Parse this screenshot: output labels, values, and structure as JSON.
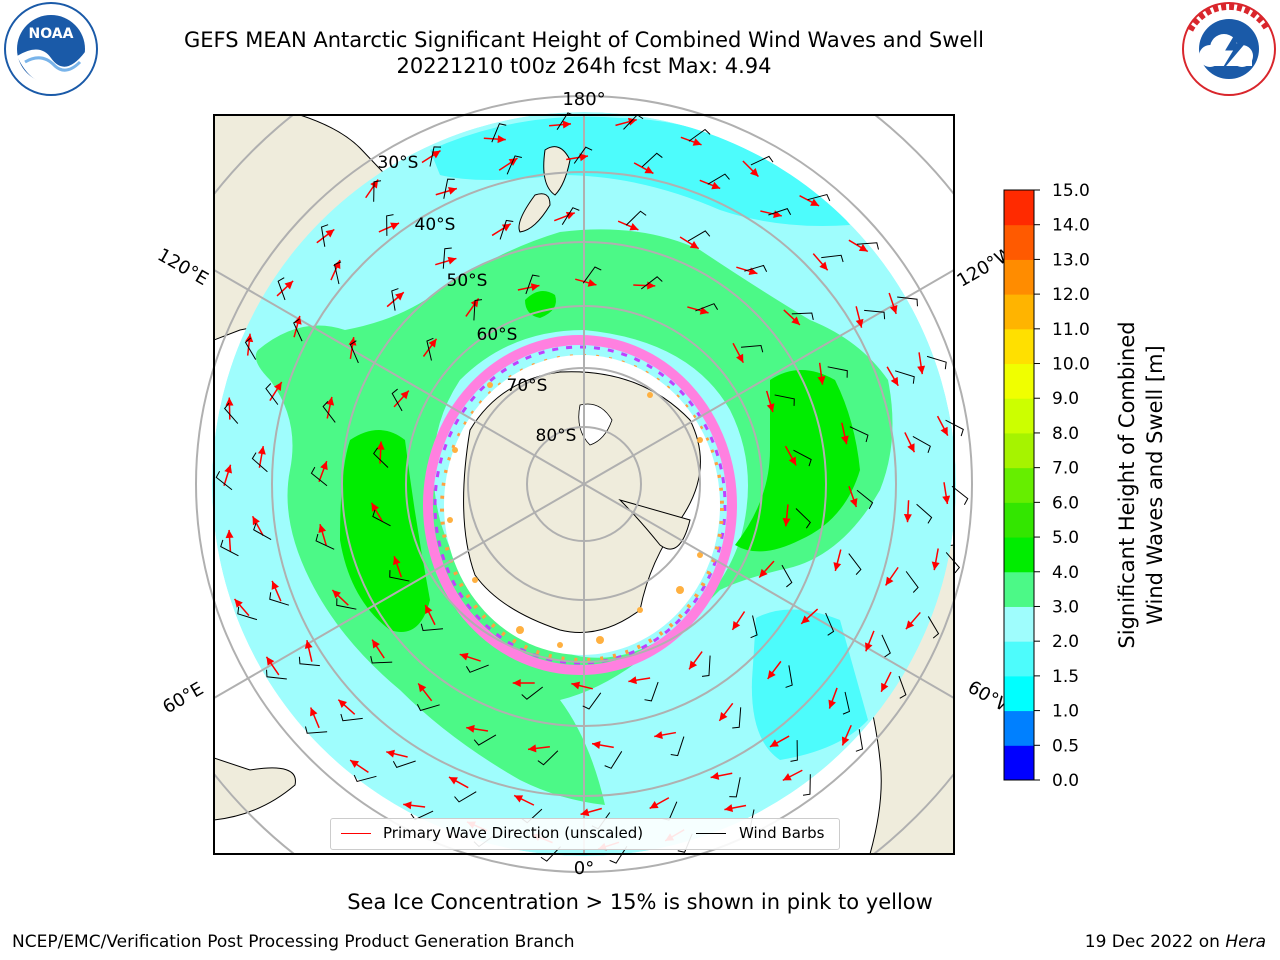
{
  "header": {
    "title_line1": "GEFS MEAN Antarctic Significant Height of Combined Wind Waves and Swell",
    "title_line2": "20221210 t00z 264h fcst   Max: 4.94"
  },
  "logos": {
    "left": {
      "text": "NOAA",
      "ring_text": "NATIONAL OCEANIC AND ATMOSPHERIC ADMINISTRATION · U.S. DEPARTMENT OF COMMERCE",
      "color": "#1a5aa8"
    },
    "right": {
      "ring_text": "NATIONAL WEATHER SERVICE",
      "color": "#d9262c"
    }
  },
  "map": {
    "projection": "south-polar-stereographic",
    "lon_labels": {
      "top": "180°",
      "bottom": "0°",
      "left_upper": "120°E",
      "left_lower": "60°E",
      "right_upper": "120°W",
      "right_lower": "60°W"
    },
    "lat_labels": [
      "30°S",
      "40°S",
      "50°S",
      "60°S",
      "70°S",
      "80°S"
    ],
    "colors": {
      "land": "#efecdc",
      "ice": "#ffffff",
      "wave_low": "#9ffdfd",
      "wave_2": "#4dfcfc",
      "wave_3": "#4cf987",
      "wave_4": "#00ed00",
      "grid": "#b0b0b0",
      "arrow": "#ff0000",
      "barb": "#000000"
    }
  },
  "legend": {
    "items": [
      {
        "label": "Primary Wave Direction (unscaled)",
        "color": "#ff0000"
      },
      {
        "label": "Wind Barbs",
        "color": "#000000"
      }
    ]
  },
  "colorbar": {
    "title_line1": "Significant Height of Combined",
    "title_line2": "Wind Waves and Swell [m]",
    "ticks": [
      "0.0",
      "0.5",
      "1.0",
      "1.5",
      "2.0",
      "3.0",
      "4.0",
      "5.0",
      "6.0",
      "7.0",
      "8.0",
      "9.0",
      "10.0",
      "11.0",
      "12.0",
      "13.0",
      "14.0",
      "15.0"
    ],
    "colors": [
      "#0000ff",
      "#0080ff",
      "#00ffff",
      "#4dfcfc",
      "#9ffdfd",
      "#4cf987",
      "#00ed00",
      "#33e600",
      "#66ee00",
      "#a6f300",
      "#ccff00",
      "#f0ff00",
      "#ffe000",
      "#ffb400",
      "#ff8c00",
      "#ff5a00",
      "#ff2a00",
      "#ff0000"
    ]
  },
  "subnote": "Sea Ice Concentration > 15% is shown in pink to yellow",
  "footer": {
    "left": "NCEP/EMC/Verification Post Processing Product Generation Branch",
    "right_prefix": "19 Dec 2022 on ",
    "right_host": "Hera"
  }
}
